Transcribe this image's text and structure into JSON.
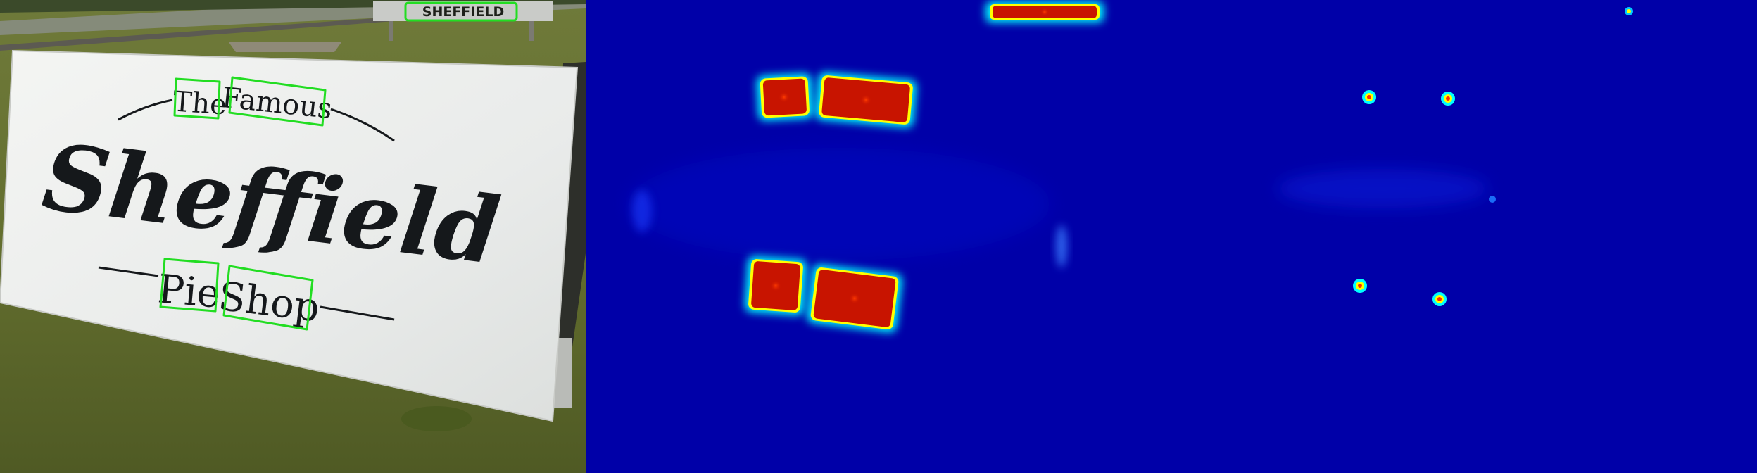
{
  "panels": [
    {
      "id": "photo",
      "description": "Input photograph with detected word boxes",
      "background_sign_text": "SHEFFIELD",
      "sign_words": [
        "The",
        "Famous",
        "Sheffield",
        "Pie",
        "Shop"
      ],
      "detection_box_color": "#22dd22"
    },
    {
      "id": "region-score-map",
      "colormap": "jet"
    },
    {
      "id": "center-point-map",
      "colormap": "jet"
    }
  ],
  "colors": {
    "grass": "#5d6a2e",
    "sign_white": "#eef0ee",
    "ink": "#15181b",
    "heatmap_low": "#0000a8",
    "heatmap_high": "#c81400",
    "box": "#22dd22"
  }
}
